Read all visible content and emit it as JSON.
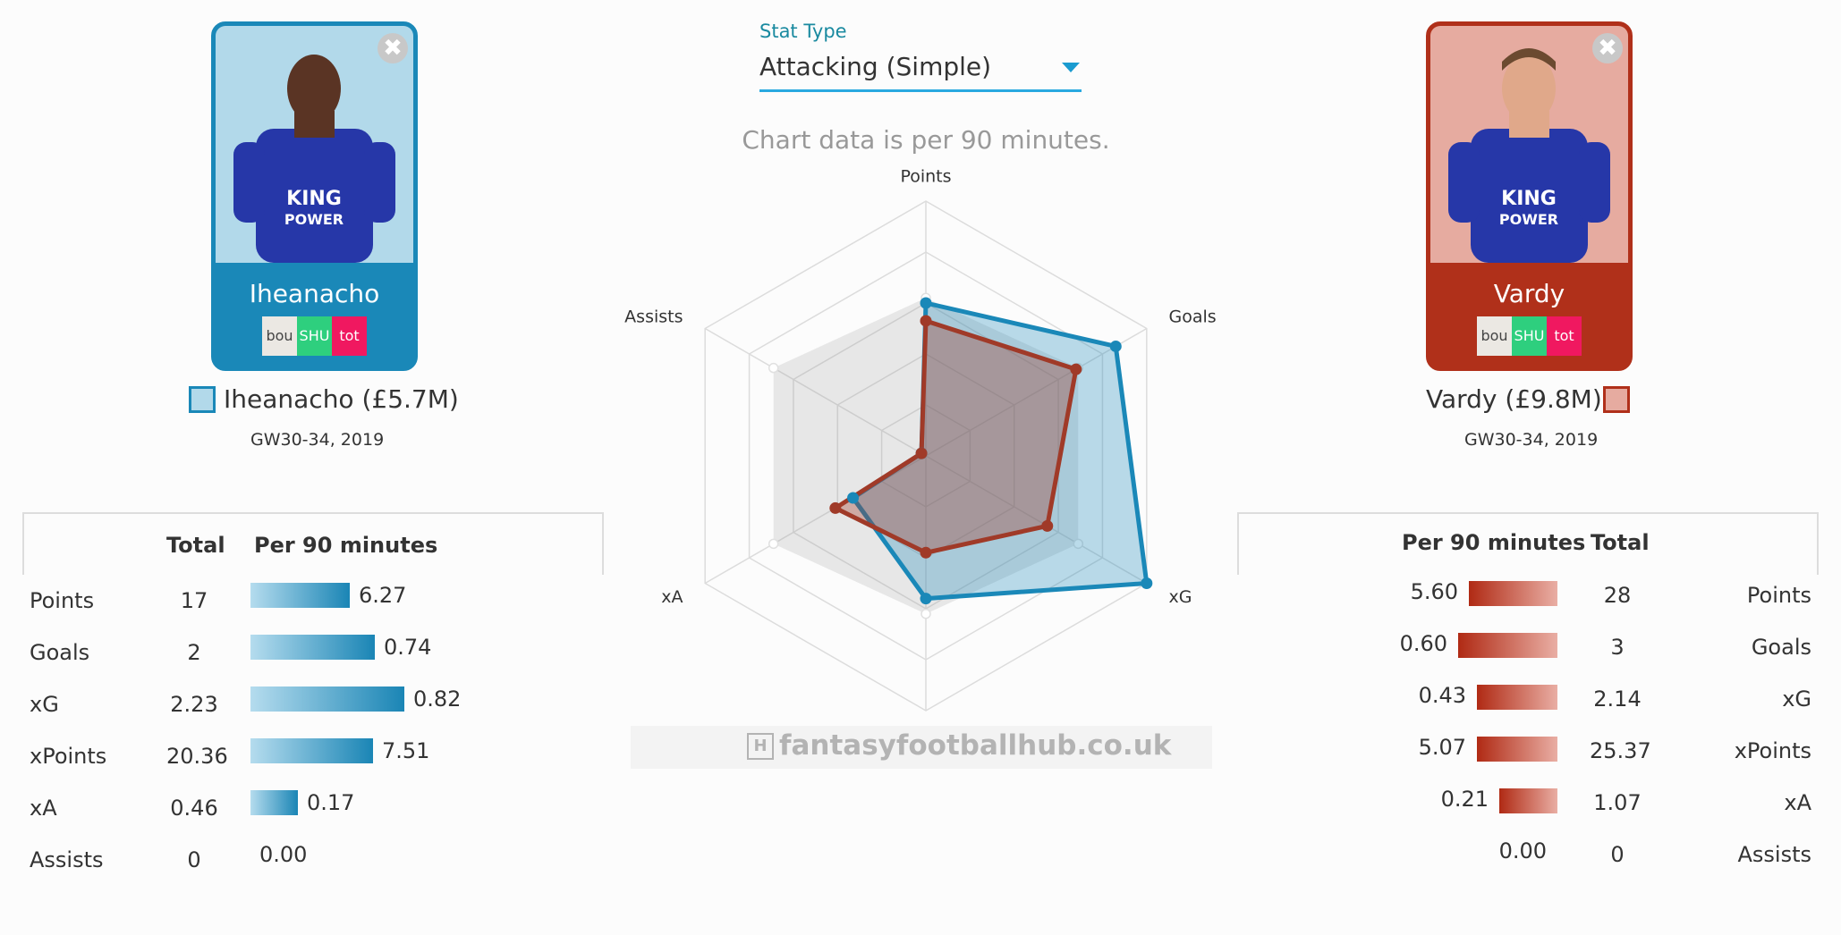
{
  "left_player": {
    "card_name": "Iheanacho",
    "fixtures": [
      "bou",
      "SHU",
      "tot"
    ],
    "label": "Iheanacho (£5.7M)",
    "period": "GW30-34, 2019",
    "color": "#1a88b8"
  },
  "right_player": {
    "card_name": "Vardy",
    "fixtures": [
      "bou",
      "SHU",
      "tot"
    ],
    "label": "Vardy (£9.8M)",
    "period": "GW30-34, 2019",
    "color": "#b0301a"
  },
  "stat_type": {
    "label": "Stat Type",
    "value": "Attacking (Simple)"
  },
  "note": "Chart data is per 90 minutes.",
  "table_headers": {
    "total": "Total",
    "per90": "Per 90 minutes"
  },
  "left_table": [
    {
      "stat": "Points",
      "total": "17",
      "per90": "6.27",
      "ratio": 0.53
    },
    {
      "stat": "Goals",
      "total": "2",
      "per90": "0.74",
      "ratio": 0.66
    },
    {
      "stat": "xG",
      "total": "2.23",
      "per90": "0.82",
      "ratio": 0.82
    },
    {
      "stat": "xPoints",
      "total": "20.36",
      "per90": "7.51",
      "ratio": 0.65
    },
    {
      "stat": "xA",
      "total": "0.46",
      "per90": "0.17",
      "ratio": 0.25
    },
    {
      "stat": "Assists",
      "total": "0",
      "per90": "0.00",
      "ratio": 0
    }
  ],
  "right_table": [
    {
      "stat": "Points",
      "total": "28",
      "per90": "5.60",
      "ratio": 0.47
    },
    {
      "stat": "Goals",
      "total": "3",
      "per90": "0.60",
      "ratio": 0.53
    },
    {
      "stat": "xG",
      "total": "2.14",
      "per90": "0.43",
      "ratio": 0.43
    },
    {
      "stat": "xPoints",
      "total": "25.37",
      "per90": "5.07",
      "ratio": 0.43
    },
    {
      "stat": "xA",
      "total": "1.07",
      "per90": "0.21",
      "ratio": 0.31
    },
    {
      "stat": "Assists",
      "total": "0",
      "per90": "0.00",
      "ratio": 0
    }
  ],
  "watermark": "fantasyfootballhub.co.uk",
  "chart_data": {
    "type": "radar",
    "axes": [
      "Points",
      "Goals",
      "xG",
      "xPoints",
      "xA",
      "Assists"
    ],
    "rlim": [
      0,
      1
    ],
    "rings": 5,
    "series": [
      {
        "name": "Iheanacho (£5.7M)",
        "color": "#1a88b8",
        "values": [
          0.6,
          0.86,
          1.0,
          0.56,
          0.33,
          0.02
        ]
      },
      {
        "name": "Vardy (£9.8M)",
        "color": "#a03a28",
        "values": [
          0.53,
          0.68,
          0.55,
          0.38,
          0.41,
          0.02
        ]
      }
    ],
    "reference": {
      "color": "#888888",
      "values": [
        0.62,
        0.69,
        0.69,
        0.62,
        0.69,
        0.69
      ]
    }
  }
}
